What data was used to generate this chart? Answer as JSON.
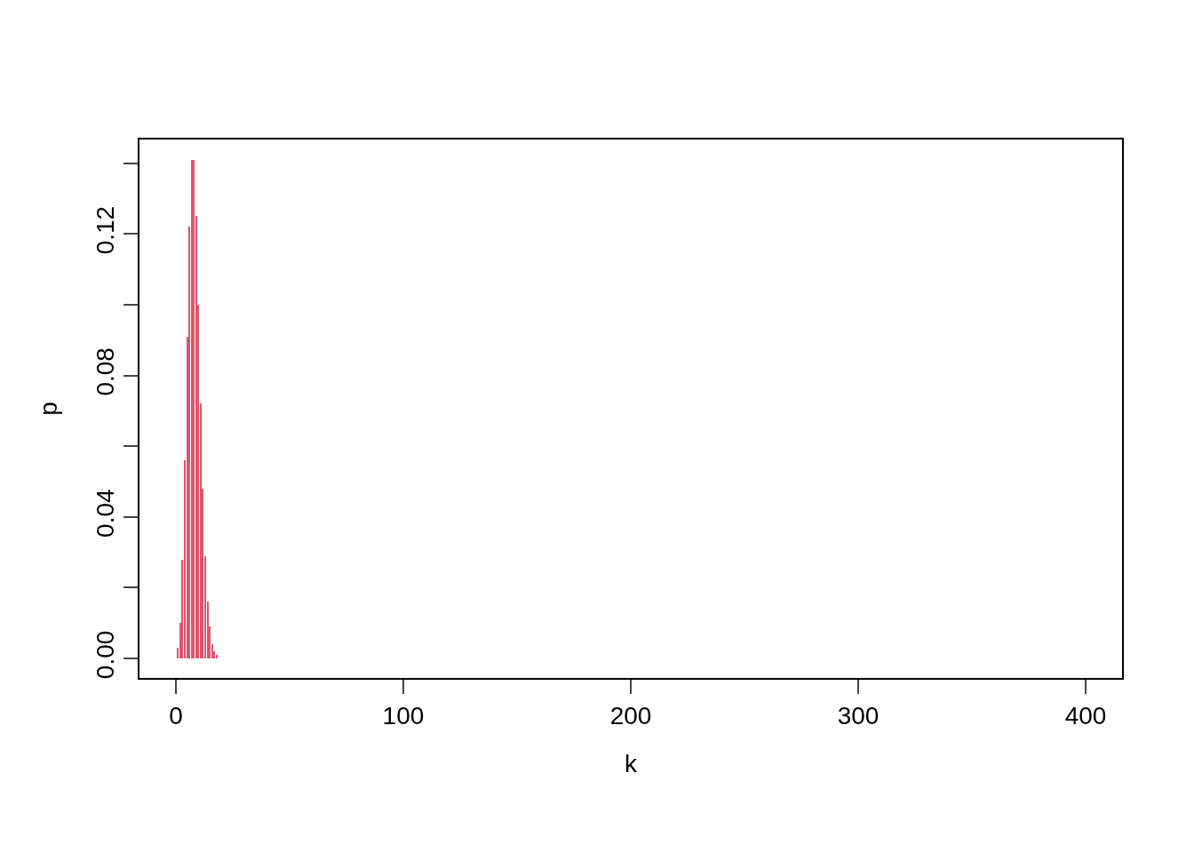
{
  "chart_data": {
    "type": "bar",
    "xlabel": "k",
    "ylabel": "p",
    "x": [
      0,
      1,
      2,
      3,
      4,
      5,
      6,
      7,
      8,
      9,
      10,
      11,
      12,
      13,
      14,
      15,
      16,
      17,
      18,
      19,
      20
    ],
    "values": [
      0.0,
      0.003,
      0.01,
      0.028,
      0.056,
      0.091,
      0.122,
      0.141,
      0.141,
      0.125,
      0.1,
      0.072,
      0.048,
      0.029,
      0.016,
      0.009,
      0.004,
      0.002,
      0.001,
      0.0,
      0.0
    ],
    "color": "#df536b",
    "xlim": [
      -16,
      416
    ],
    "xticks": [
      0,
      100,
      200,
      300,
      400
    ],
    "ylim": [
      -0.0055,
      0.1467
    ],
    "yticks": [
      {
        "value": 0,
        "label": "0.00"
      },
      {
        "value": 0.02,
        "label": null
      },
      {
        "value": 0.04,
        "label": "0.04"
      },
      {
        "value": 0.06,
        "label": null
      },
      {
        "value": 0.08,
        "label": "0.08"
      },
      {
        "value": 0.1,
        "label": null
      },
      {
        "value": 0.12,
        "label": "0.12"
      },
      {
        "value": 0.14,
        "label": null
      }
    ],
    "grid": false
  }
}
